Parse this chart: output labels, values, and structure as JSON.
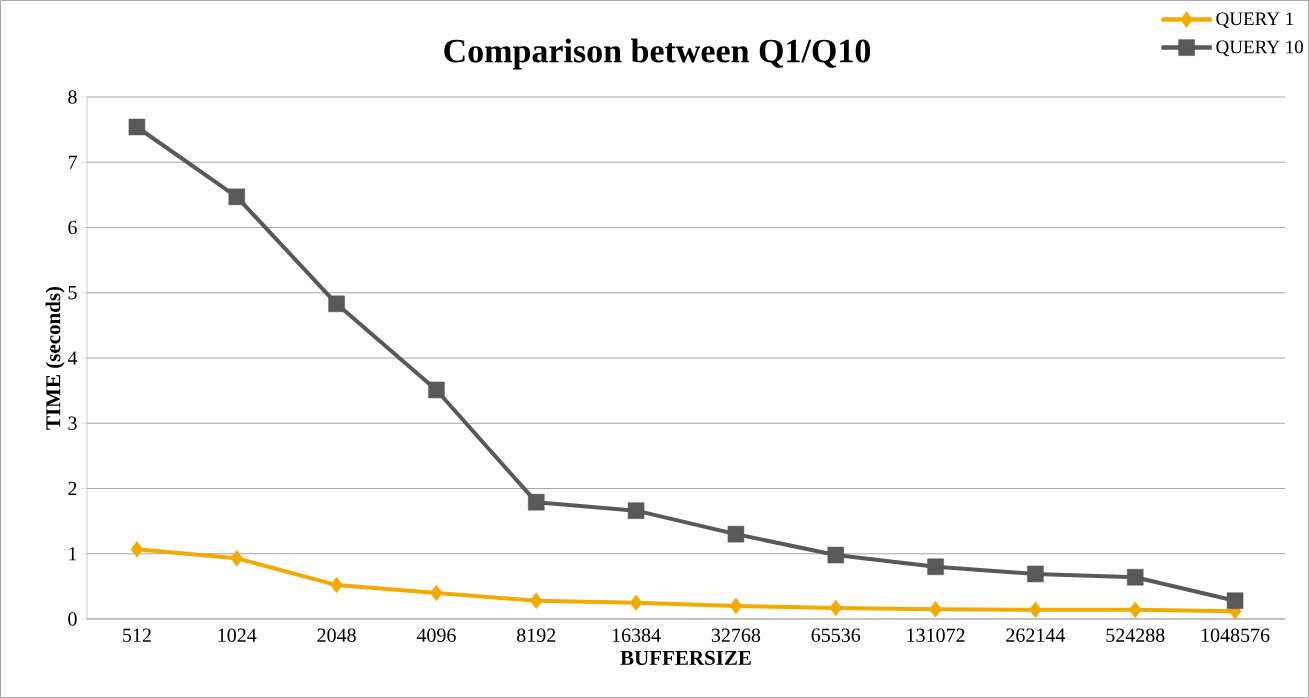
{
  "chart_data": {
    "type": "line",
    "title": "Comparison between Q1/Q10",
    "xlabel": "BUFFERSIZE",
    "ylabel": "TIME (seconds)",
    "categories": [
      "512",
      "1024",
      "2048",
      "4096",
      "8192",
      "16384",
      "32768",
      "65536",
      "131072",
      "262144",
      "524288",
      "1048576"
    ],
    "series": [
      {
        "name": "QUERY 1",
        "color": "#f2a900",
        "marker": "diamond",
        "values": [
          1.07,
          0.93,
          0.52,
          0.4,
          0.28,
          0.25,
          0.2,
          0.17,
          0.15,
          0.14,
          0.14,
          0.12
        ]
      },
      {
        "name": "QUERY 10",
        "color": "#595959",
        "marker": "square",
        "values": [
          7.54,
          6.47,
          4.83,
          3.51,
          1.79,
          1.66,
          1.3,
          0.98,
          0.8,
          0.69,
          0.64,
          0.28
        ]
      }
    ],
    "ylim": [
      0,
      8
    ],
    "yticks": [
      0,
      1,
      2,
      3,
      4,
      5,
      6,
      7,
      8
    ],
    "grid": "y",
    "legend": "top right",
    "line_style": "solid"
  }
}
